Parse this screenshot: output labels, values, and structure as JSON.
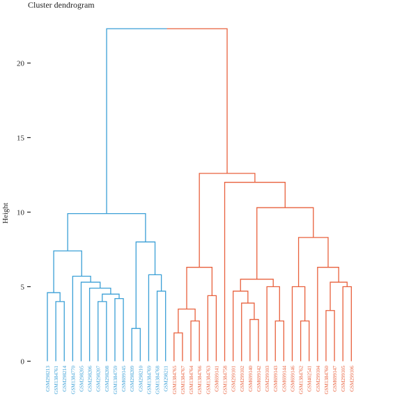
{
  "chart_data": {
    "type": "dendrogram",
    "title": "Cluster dendrogram",
    "xlabel": "",
    "ylabel": "Height",
    "ylim": [
      0,
      22.5
    ],
    "yticks": [
      0,
      5,
      10,
      15,
      20
    ],
    "colors": {
      "cluster1": "#3a9fd6",
      "cluster2": "#e8603c",
      "axis": "#222222"
    },
    "leaves": [
      "GSM298213",
      "GSM1384761",
      "GSM298214",
      "GSM1384770",
      "GSM298205",
      "GSM298206",
      "GSM298207",
      "GSM298208",
      "GSM1384759",
      "GSM699145",
      "GSM298209",
      "GSM298210",
      "GSM1384769",
      "GSM1384768",
      "GSM298211",
      "GSM1384765",
      "GSM1384767",
      "GSM1384764",
      "GSM1384766",
      "GSM1384763",
      "GSM699141",
      "GSM1384758",
      "GSM299101",
      "GSM299102",
      "GSM699140",
      "GSM699142",
      "GSM299103",
      "GSM699143",
      "GSM699144",
      "GSM699146",
      "GSM1384762",
      "GSM402541",
      "GSM299104",
      "GSM1384760",
      "GSM699147",
      "GSM299105",
      "GSM299106"
    ],
    "cluster1_leaf_count": 15,
    "merges": [
      [
        1,
        2,
        4.0
      ],
      [
        0,
        -1,
        4.6
      ],
      [
        6,
        7,
        4.0
      ],
      [
        8,
        9,
        4.2
      ],
      [
        -3,
        -4,
        4.5
      ],
      [
        5,
        -5,
        4.9
      ],
      [
        4,
        -6,
        5.3
      ],
      [
        3,
        -7,
        5.7
      ],
      [
        -2,
        -8,
        7.4
      ],
      [
        10,
        11,
        2.2
      ],
      [
        13,
        14,
        4.7
      ],
      [
        12,
        -11,
        5.8
      ],
      [
        -10,
        -12,
        8.0
      ],
      [
        -9,
        -13,
        9.9
      ],
      [
        15,
        16,
        1.9
      ],
      [
        17,
        18,
        2.7
      ],
      [
        -15,
        -16,
        3.5
      ],
      [
        19,
        20,
        4.4
      ],
      [
        -17,
        -18,
        6.3
      ],
      [
        24,
        25,
        2.8
      ],
      [
        23,
        -20,
        3.9
      ],
      [
        22,
        -21,
        4.7
      ],
      [
        27,
        28,
        2.7
      ],
      [
        26,
        -23,
        5.0
      ],
      [
        -22,
        -24,
        5.5
      ],
      [
        30,
        31,
        2.7
      ],
      [
        29,
        -26,
        5.0
      ],
      [
        33,
        34,
        3.4
      ],
      [
        35,
        36,
        5.0
      ],
      [
        -28,
        -29,
        5.3
      ],
      [
        32,
        -30,
        6.3
      ],
      [
        -27,
        -31,
        8.3
      ],
      [
        -25,
        -32,
        10.3
      ],
      [
        21,
        -33,
        12.0
      ],
      [
        -19,
        -34,
        12.6
      ],
      [
        -14,
        -35,
        22.3
      ]
    ]
  }
}
